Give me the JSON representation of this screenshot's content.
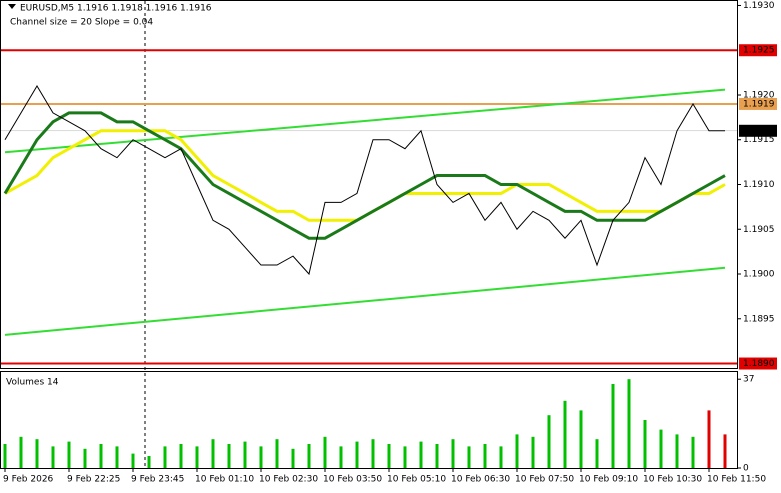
{
  "chart_data": {
    "type": "line",
    "title": "EURUSD,M5  1.1916 1.1918 1.1916 1.1916",
    "subtitle": "Channel size = 20 Slope = 0.04",
    "categories": [
      "9 Feb 2026",
      null,
      null,
      null,
      "9 Feb 22:25",
      null,
      null,
      null,
      "9 Feb 23:45",
      null,
      null,
      null,
      "10 Feb 01:10",
      null,
      null,
      null,
      "10 Feb 02:30",
      null,
      null,
      null,
      "10 Feb 03:50",
      null,
      null,
      null,
      "10 Feb 05:10",
      null,
      null,
      null,
      "10 Feb 06:30",
      null,
      null,
      null,
      "10 Feb 07:50",
      null,
      null,
      null,
      "10 Feb 09:10",
      null,
      null,
      null,
      "10 Feb 10:30",
      null,
      null,
      null,
      "10 Feb 11:50",
      null
    ],
    "series": [
      {
        "name": "EURUSD",
        "color": "#000000",
        "values": [
          1.1915,
          1.1918,
          1.1921,
          1.1918,
          1.1917,
          1.1916,
          1.1914,
          1.1913,
          1.1915,
          1.1914,
          1.1913,
          1.1914,
          1.191,
          1.1906,
          1.1905,
          1.1903,
          1.1901,
          1.1901,
          1.1902,
          1.19,
          1.1908,
          1.1908,
          1.1909,
          1.1915,
          1.1915,
          1.1914,
          1.1916,
          1.191,
          1.1908,
          1.1909,
          1.1906,
          1.1908,
          1.1905,
          1.1907,
          1.1906,
          1.1904,
          1.1906,
          1.1901,
          1.1906,
          1.1908,
          1.1913,
          1.191,
          1.1916,
          1.1919,
          1.1916,
          1.1916
        ]
      },
      {
        "color": "#1a7a1a",
        "values": [
          1.1909,
          1.1912,
          1.1915,
          1.1917,
          1.1918,
          1.1918,
          1.1918,
          1.1917,
          1.1917,
          1.1916,
          1.1915,
          1.1914,
          1.1912,
          1.191,
          1.1909,
          1.1908,
          1.1907,
          1.1906,
          1.1905,
          1.1904,
          1.1904,
          1.1905,
          1.1906,
          1.1907,
          1.1908,
          1.1909,
          1.191,
          1.1911,
          1.1911,
          1.1911,
          1.1911,
          1.191,
          1.191,
          1.1909,
          1.1908,
          1.1907,
          1.1907,
          1.1906,
          1.1906,
          1.1906,
          1.1906,
          1.1907,
          1.1908,
          1.1909,
          1.191,
          1.1911
        ]
      },
      {
        "color": "#f0f000",
        "values": [
          1.1909,
          1.191,
          1.1911,
          1.1913,
          1.1914,
          1.1915,
          1.1916,
          1.1916,
          1.1916,
          1.1916,
          1.1916,
          1.1915,
          1.1913,
          1.1911,
          1.191,
          1.1909,
          1.1908,
          1.1907,
          1.1907,
          1.1906,
          1.1906,
          1.1906,
          1.1906,
          1.1907,
          1.1908,
          1.1909,
          1.1909,
          1.1909,
          1.1909,
          1.1909,
          1.1909,
          1.1909,
          1.191,
          1.191,
          1.191,
          1.1909,
          1.1908,
          1.1907,
          1.1907,
          1.1907,
          1.1907,
          1.1907,
          1.1908,
          1.1909,
          1.1909,
          1.191
        ]
      }
    ],
    "trend_lines": [
      {
        "color": "#33dd33",
        "x": [
          0,
          45
        ],
        "values": [
          1.19136,
          1.19206
        ]
      },
      {
        "color": "#33dd33",
        "x": [
          0,
          45
        ],
        "values": [
          1.18932,
          1.19007
        ]
      }
    ],
    "levels": [
      {
        "value": 1.1925,
        "label": "1.1925",
        "color": "#e00000"
      },
      {
        "value": 1.1919,
        "label": "1.1919",
        "color": "#e8a050"
      },
      {
        "value": 1.1916,
        "label": "1.1916",
        "color": "#000000"
      },
      {
        "value": 1.189,
        "label": "1.1890",
        "color": "#e00000"
      }
    ],
    "ylim": [
      1.18895,
      1.19305
    ],
    "yticks": [
      {
        "value": 1.193,
        "label": "1.1930"
      },
      {
        "value": 1.192,
        "label": "1.1920"
      },
      {
        "value": 1.1915,
        "label": "1.1915"
      },
      {
        "value": 1.191,
        "label": "1.1910"
      },
      {
        "value": 1.1905,
        "label": "1.1905"
      },
      {
        "value": 1.19,
        "label": "1.1900"
      },
      {
        "value": 1.1895,
        "label": "1.1895"
      }
    ],
    "volumes": {
      "title": "Volumes 14",
      "color": "#00c000",
      "values": [
        10,
        13,
        12,
        9,
        11,
        8,
        10,
        9,
        6,
        5,
        9,
        10,
        9,
        12,
        10,
        11,
        9,
        12,
        8,
        10,
        13,
        9,
        11,
        12,
        10,
        9,
        11,
        10,
        12,
        9,
        10,
        9,
        14,
        13,
        22,
        28,
        24,
        12,
        35,
        37,
        20,
        16,
        14,
        13,
        24,
        14
      ],
      "ylim": [
        0,
        40
      ],
      "yticks": [
        0,
        37
      ]
    }
  }
}
